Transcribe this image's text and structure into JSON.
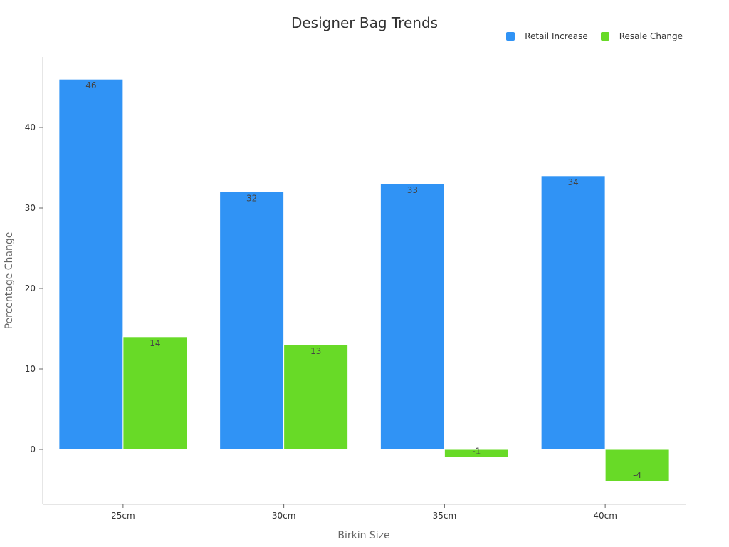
{
  "chart_data": {
    "type": "bar",
    "title": "Designer Bag Trends",
    "xlabel": "Birkin Size",
    "ylabel": "Percentage Change",
    "categories": [
      "25cm",
      "30cm",
      "35cm",
      "40cm"
    ],
    "series": [
      {
        "name": "Retail Increase",
        "color": "#3093F5",
        "values": [
          46,
          32,
          33,
          34
        ]
      },
      {
        "name": "Resale Change",
        "color": "#68DA27",
        "values": [
          14,
          13,
          -1,
          -4
        ]
      }
    ],
    "data_labels": [
      [
        "46",
        "32",
        "33",
        "34"
      ],
      [
        "14",
        "13",
        "-1",
        "-4"
      ]
    ],
    "ylim": [
      -7,
      49
    ],
    "yticks": [
      0,
      10,
      20,
      30,
      40
    ],
    "grid": false,
    "legend_position": "top-right"
  }
}
